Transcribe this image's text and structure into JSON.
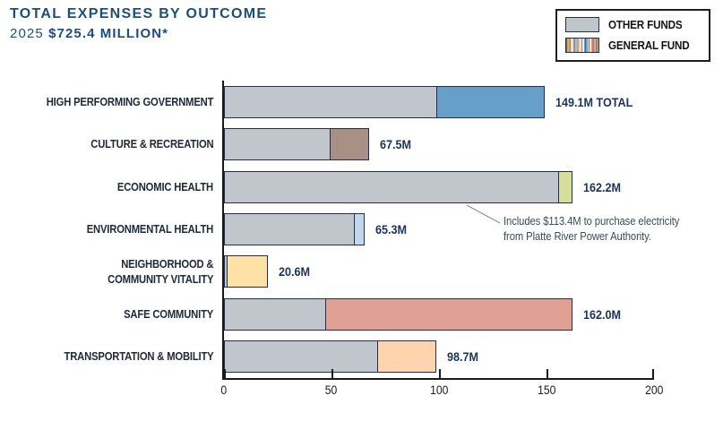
{
  "header": {
    "title": "TOTAL EXPENSES BY OUTCOME",
    "subtitle_year": "2025",
    "subtitle_amount": "$725.4 MILLION*"
  },
  "legend": {
    "other_funds_label": "OTHER FUNDS",
    "general_fund_label": "GENERAL FUND"
  },
  "colors": {
    "title": "#1b4e7c",
    "other_funds": "#c0c6cc",
    "bar_border": "#242e4c",
    "axis": "#1a1a1a",
    "value_label": "#1c3258",
    "category_label": "#222a38",
    "annotation_text": "#3f4a57"
  },
  "chart_data": {
    "type": "bar",
    "orientation": "horizontal",
    "stacked": true,
    "title": "TOTAL EXPENSES BY OUTCOME",
    "subtitle": "2025 $725.4 MILLION*",
    "categories": [
      "HIGH PERFORMING GOVERNMENT",
      "CULTURE & RECREATION",
      "ECONOMIC HEALTH",
      "ENVIRONMENTAL HEALTH",
      "NEIGHBORHOOD &\nCOMMUNITY VITALITY",
      "SAFE COMMUNITY",
      "TRANSPORTATION & MOBILITY"
    ],
    "series": [
      {
        "name": "OTHER FUNDS",
        "values": [
          99.5,
          50.0,
          156.0,
          61.0,
          2.0,
          47.8,
          72.1
        ]
      },
      {
        "name": "GENERAL FUND",
        "values": [
          49.6,
          17.5,
          6.2,
          4.3,
          18.6,
          114.2,
          26.6
        ]
      }
    ],
    "totals": [
      149.1,
      67.5,
      162.2,
      65.3,
      20.6,
      162.0,
      98.7
    ],
    "total_labels": [
      "149.1M TOTAL",
      "67.5M",
      "162.2M",
      "65.3M",
      "20.6M",
      "162.0M",
      "98.7M"
    ],
    "general_fund_colors": [
      "#66a0c8",
      "#a89084",
      "#d5de9b",
      "#c0d8ea",
      "#fde1a7",
      "#e0a096",
      "#fed3ae"
    ],
    "xlim": [
      0,
      200
    ],
    "x_ticks": [
      "0",
      "50",
      "100",
      "150",
      "200"
    ],
    "legend_position": "top-right",
    "grid": false,
    "annotation": {
      "text": "Includes $113.4M to purchase electricity\nfrom Platte River Power Authority.",
      "target_category": "ECONOMIC HEALTH"
    }
  }
}
